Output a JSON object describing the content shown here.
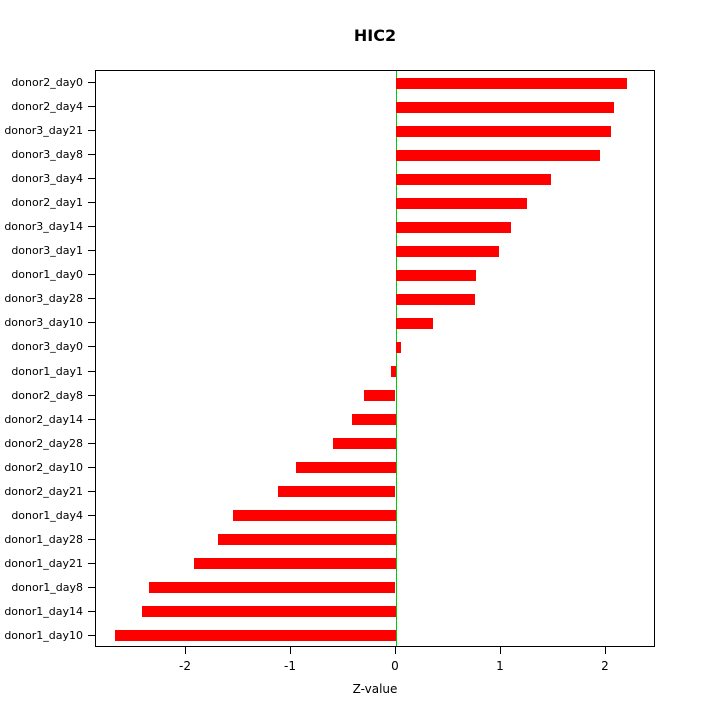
{
  "chart_data": {
    "type": "bar",
    "orientation": "horizontal",
    "title": "HIC2",
    "xlabel": "Z-value",
    "ylabel": "",
    "categories": [
      "donor2_day0",
      "donor2_day4",
      "donor3_day21",
      "donor3_day8",
      "donor3_day4",
      "donor2_day1",
      "donor3_day14",
      "donor3_day1",
      "donor1_day0",
      "donor3_day28",
      "donor3_day10",
      "donor3_day0",
      "donor1_day1",
      "donor2_day8",
      "donor2_day14",
      "donor2_day28",
      "donor2_day10",
      "donor2_day21",
      "donor1_day4",
      "donor1_day28",
      "donor1_day21",
      "donor1_day8",
      "donor1_day14",
      "donor1_day10"
    ],
    "values": [
      2.2,
      2.08,
      2.05,
      1.95,
      1.48,
      1.25,
      1.1,
      0.98,
      0.76,
      0.75,
      0.35,
      0.05,
      -0.05,
      -0.3,
      -0.42,
      -0.6,
      -0.95,
      -1.12,
      -1.55,
      -1.7,
      -1.93,
      -2.35,
      -2.42,
      -2.68
    ],
    "xlim": [
      -2.86,
      2.48
    ],
    "xticks": [
      -2,
      -1,
      0,
      1,
      2
    ],
    "xtick_labels": [
      "-2",
      "-1",
      "0",
      "1",
      "2"
    ],
    "bar_color": "#FF0000",
    "zero_line_color": "#00CD00",
    "grid": false,
    "legend": false
  }
}
